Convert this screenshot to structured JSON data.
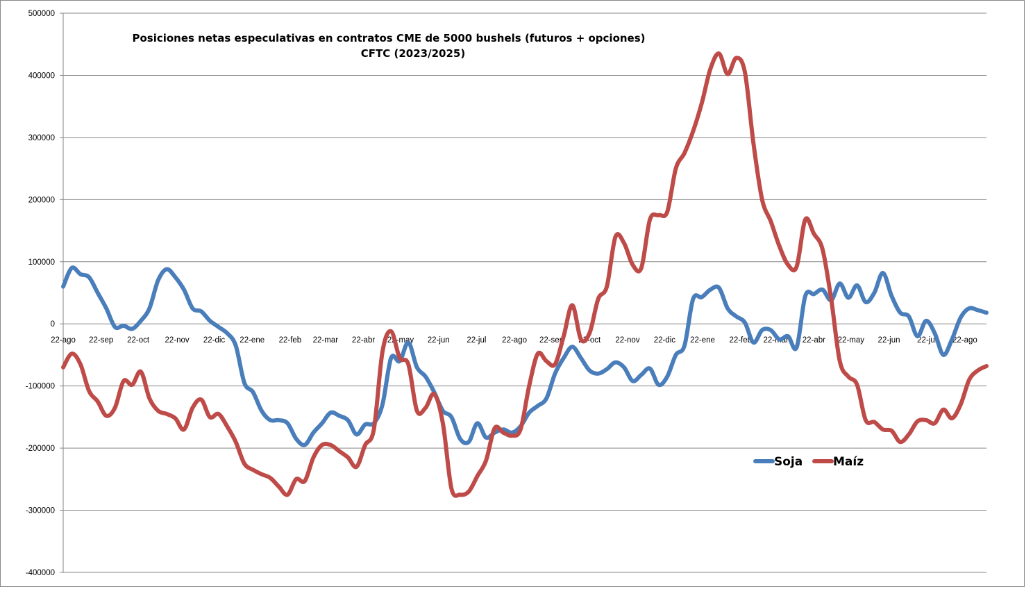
{
  "chart_data": {
    "type": "line",
    "title": "Posiciones netas especulativas en contratos CME de 5000 bushels (futuros + opciones)",
    "subtitle": "CFTC (2023/2025)",
    "xlabel": "",
    "ylabel": "",
    "ylim": [
      -400000,
      500000
    ],
    "yticks": [
      500000,
      400000,
      300000,
      200000,
      100000,
      0,
      -100000,
      -200000,
      -300000,
      -400000
    ],
    "ytick_labels": [
      "500000",
      "400000",
      "300000",
      "200000",
      "100000",
      "0",
      "-100000",
      "-200000",
      "-300000",
      "-400000"
    ],
    "xlim": [
      0,
      107
    ],
    "x_ticks": [
      {
        "pos": 0,
        "label": "22-ago"
      },
      {
        "pos": 4.4,
        "label": "22-sep"
      },
      {
        "pos": 8.7,
        "label": "22-oct"
      },
      {
        "pos": 13.2,
        "label": "22-nov"
      },
      {
        "pos": 17.5,
        "label": "22-dic"
      },
      {
        "pos": 21.9,
        "label": "22-ene"
      },
      {
        "pos": 26.3,
        "label": "22-feb"
      },
      {
        "pos": 30.4,
        "label": "22-mar"
      },
      {
        "pos": 34.8,
        "label": "22-abr"
      },
      {
        "pos": 39.1,
        "label": "22-may"
      },
      {
        "pos": 43.5,
        "label": "22-jun"
      },
      {
        "pos": 47.9,
        "label": "22-jul"
      },
      {
        "pos": 52.3,
        "label": "22-ago"
      },
      {
        "pos": 56.6,
        "label": "22-sep"
      },
      {
        "pos": 61,
        "label": "22-oct"
      },
      {
        "pos": 65.4,
        "label": "22-nov"
      },
      {
        "pos": 69.7,
        "label": "22-dic"
      },
      {
        "pos": 74.1,
        "label": "22-ene"
      },
      {
        "pos": 78.5,
        "label": "22-feb"
      },
      {
        "pos": 82.6,
        "label": "22-mar"
      },
      {
        "pos": 87,
        "label": "22-abr"
      },
      {
        "pos": 91.3,
        "label": "22-may"
      },
      {
        "pos": 95.7,
        "label": "22-jun"
      },
      {
        "pos": 100.1,
        "label": "22-jul"
      },
      {
        "pos": 104.5,
        "label": "22-ago"
      }
    ],
    "grid": true,
    "legend_position": "lower-right",
    "series": [
      {
        "name": "Soja",
        "color": "#4a7ebb",
        "points": [
          [
            0,
            60000
          ],
          [
            1,
            90000
          ],
          [
            2,
            80000
          ],
          [
            3,
            75000
          ],
          [
            4,
            50000
          ],
          [
            5,
            25000
          ],
          [
            6,
            -5000
          ],
          [
            7,
            -3000
          ],
          [
            8,
            -8000
          ],
          [
            9,
            5000
          ],
          [
            10,
            25000
          ],
          [
            11,
            70000
          ],
          [
            12,
            88000
          ],
          [
            13,
            75000
          ],
          [
            14,
            55000
          ],
          [
            15,
            25000
          ],
          [
            16,
            20000
          ],
          [
            17,
            5000
          ],
          [
            18,
            -5000
          ],
          [
            19,
            -15000
          ],
          [
            20,
            -35000
          ],
          [
            21,
            -95000
          ],
          [
            22,
            -110000
          ],
          [
            23,
            -140000
          ],
          [
            24,
            -155000
          ],
          [
            25,
            -155000
          ],
          [
            26,
            -160000
          ],
          [
            27,
            -185000
          ],
          [
            28,
            -195000
          ],
          [
            29,
            -175000
          ],
          [
            30,
            -160000
          ],
          [
            31,
            -143000
          ],
          [
            32,
            -148000
          ],
          [
            33,
            -155000
          ],
          [
            34,
            -178000
          ],
          [
            35,
            -162000
          ],
          [
            36,
            -160000
          ],
          [
            37,
            -130000
          ],
          [
            38,
            -55000
          ],
          [
            39,
            -60000
          ],
          [
            40,
            -30000
          ],
          [
            41,
            -70000
          ],
          [
            42,
            -85000
          ],
          [
            43,
            -110000
          ],
          [
            44,
            -140000
          ],
          [
            45,
            -150000
          ],
          [
            46,
            -185000
          ],
          [
            47,
            -190000
          ],
          [
            48,
            -160000
          ],
          [
            49,
            -183000
          ],
          [
            50,
            -175000
          ],
          [
            51,
            -170000
          ],
          [
            52,
            -175000
          ],
          [
            53,
            -165000
          ],
          [
            54,
            -143000
          ],
          [
            55,
            -132000
          ],
          [
            56,
            -120000
          ],
          [
            57,
            -80000
          ],
          [
            58,
            -55000
          ],
          [
            59,
            -37000
          ],
          [
            60,
            -55000
          ],
          [
            61,
            -75000
          ],
          [
            62,
            -80000
          ],
          [
            63,
            -73000
          ],
          [
            64,
            -62000
          ],
          [
            65,
            -70000
          ],
          [
            66,
            -92000
          ],
          [
            67,
            -82000
          ],
          [
            68,
            -72000
          ],
          [
            69,
            -98000
          ],
          [
            70,
            -85000
          ],
          [
            71,
            -50000
          ],
          [
            72,
            -35000
          ],
          [
            73,
            40000
          ],
          [
            74,
            43000
          ],
          [
            75,
            55000
          ],
          [
            76,
            58000
          ],
          [
            77,
            25000
          ],
          [
            78,
            12000
          ],
          [
            79,
            2000
          ],
          [
            80,
            -30000
          ],
          [
            81,
            -10000
          ],
          [
            82,
            -10000
          ],
          [
            83,
            -25000
          ],
          [
            84,
            -20000
          ],
          [
            85,
            -38000
          ],
          [
            86,
            45000
          ],
          [
            87,
            48000
          ],
          [
            88,
            55000
          ],
          [
            89,
            38000
          ],
          [
            90,
            65000
          ],
          [
            91,
            42000
          ],
          [
            92,
            62000
          ],
          [
            93,
            35000
          ],
          [
            94,
            50000
          ],
          [
            95,
            82000
          ],
          [
            96,
            45000
          ],
          [
            97,
            18000
          ],
          [
            98,
            12000
          ],
          [
            99,
            -20000
          ],
          [
            100,
            5000
          ],
          [
            101,
            -15000
          ],
          [
            102,
            -50000
          ],
          [
            103,
            -25000
          ],
          [
            104,
            10000
          ],
          [
            105,
            25000
          ],
          [
            106,
            22000
          ],
          [
            107,
            18000
          ]
        ]
      },
      {
        "name": "Maíz",
        "color": "#be4b48",
        "points": [
          [
            0,
            -70000
          ],
          [
            1,
            -48000
          ],
          [
            2,
            -65000
          ],
          [
            3,
            -108000
          ],
          [
            4,
            -125000
          ],
          [
            5,
            -148000
          ],
          [
            6,
            -135000
          ],
          [
            7,
            -92000
          ],
          [
            8,
            -98000
          ],
          [
            9,
            -77000
          ],
          [
            10,
            -120000
          ],
          [
            11,
            -140000
          ],
          [
            12,
            -145000
          ],
          [
            13,
            -152000
          ],
          [
            14,
            -170000
          ],
          [
            15,
            -135000
          ],
          [
            16,
            -122000
          ],
          [
            17,
            -150000
          ],
          [
            18,
            -145000
          ],
          [
            19,
            -165000
          ],
          [
            20,
            -190000
          ],
          [
            21,
            -225000
          ],
          [
            22,
            -235000
          ],
          [
            23,
            -242000
          ],
          [
            24,
            -248000
          ],
          [
            25,
            -262000
          ],
          [
            26,
            -275000
          ],
          [
            27,
            -250000
          ],
          [
            28,
            -253000
          ],
          [
            29,
            -215000
          ],
          [
            30,
            -195000
          ],
          [
            31,
            -195000
          ],
          [
            32,
            -205000
          ],
          [
            33,
            -215000
          ],
          [
            34,
            -230000
          ],
          [
            35,
            -195000
          ],
          [
            36,
            -170000
          ],
          [
            37,
            -45000
          ],
          [
            38,
            -12000
          ],
          [
            39,
            -55000
          ],
          [
            40,
            -65000
          ],
          [
            41,
            -140000
          ],
          [
            42,
            -135000
          ],
          [
            43,
            -113000
          ],
          [
            44,
            -160000
          ],
          [
            45,
            -265000
          ],
          [
            46,
            -275000
          ],
          [
            47,
            -270000
          ],
          [
            48,
            -245000
          ],
          [
            49,
            -220000
          ],
          [
            50,
            -168000
          ],
          [
            51,
            -175000
          ],
          [
            52,
            -180000
          ],
          [
            53,
            -170000
          ],
          [
            54,
            -100000
          ],
          [
            55,
            -48000
          ],
          [
            56,
            -60000
          ],
          [
            57,
            -65000
          ],
          [
            58,
            -20000
          ],
          [
            59,
            30000
          ],
          [
            60,
            -25000
          ],
          [
            61,
            -15000
          ],
          [
            62,
            40000
          ],
          [
            63,
            60000
          ],
          [
            64,
            140000
          ],
          [
            65,
            130000
          ],
          [
            66,
            95000
          ],
          [
            67,
            90000
          ],
          [
            68,
            168000
          ],
          [
            69,
            175000
          ],
          [
            70,
            180000
          ],
          [
            71,
            250000
          ],
          [
            72,
            275000
          ],
          [
            73,
            310000
          ],
          [
            74,
            355000
          ],
          [
            75,
            410000
          ],
          [
            76,
            435000
          ],
          [
            77,
            402000
          ],
          [
            78,
            428000
          ],
          [
            79,
            405000
          ],
          [
            80,
            290000
          ],
          [
            81,
            200000
          ],
          [
            82,
            165000
          ],
          [
            83,
            125000
          ],
          [
            84,
            95000
          ],
          [
            85,
            92000
          ],
          [
            86,
            168000
          ],
          [
            87,
            145000
          ],
          [
            88,
            120000
          ],
          [
            89,
            40000
          ],
          [
            90,
            -60000
          ],
          [
            91,
            -85000
          ],
          [
            92,
            -98000
          ],
          [
            93,
            -155000
          ],
          [
            94,
            -158000
          ],
          [
            95,
            -170000
          ],
          [
            96,
            -172000
          ],
          [
            97,
            -190000
          ],
          [
            98,
            -178000
          ],
          [
            99,
            -157000
          ],
          [
            100,
            -155000
          ],
          [
            101,
            -160000
          ],
          [
            102,
            -138000
          ],
          [
            103,
            -152000
          ],
          [
            104,
            -130000
          ],
          [
            105,
            -90000
          ],
          [
            106,
            -75000
          ],
          [
            107,
            -68000
          ]
        ]
      }
    ]
  }
}
